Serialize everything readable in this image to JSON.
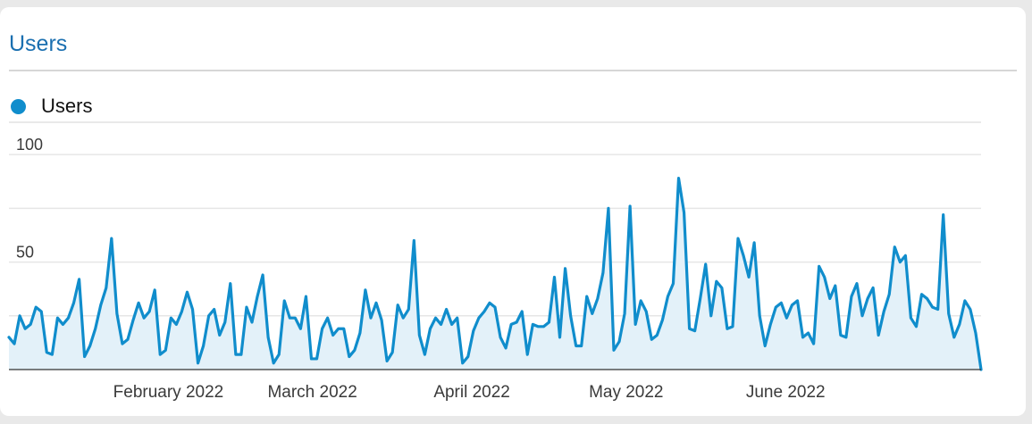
{
  "card": {
    "title": "Users"
  },
  "legend": {
    "label": "Users",
    "color": "#108dcc"
  },
  "chart_data": {
    "type": "area",
    "title": "Users",
    "xlabel": "",
    "ylabel": "",
    "ylim": [
      0,
      100
    ],
    "grid": true,
    "legend_position": "top-left",
    "y_ticks": [
      {
        "value": 100,
        "label": "100"
      },
      {
        "value": 50,
        "label": "50"
      }
    ],
    "x_ticks": [
      {
        "date": "2022-02-01",
        "label": "February 2022"
      },
      {
        "date": "2022-03-01",
        "label": "March 2022"
      },
      {
        "date": "2022-04-01",
        "label": "April 2022"
      },
      {
        "date": "2022-05-01",
        "label": "May 2022"
      },
      {
        "date": "2022-06-01",
        "label": "June 2022"
      }
    ],
    "x_start": "2022-01-01",
    "x_end": "2022-07-09",
    "series": [
      {
        "name": "Users",
        "color": "#108dcc",
        "fill": "#e3f1f9",
        "values": [
          15,
          12,
          25,
          19,
          21,
          29,
          27,
          8,
          7,
          24,
          21,
          24,
          31,
          42,
          6,
          11,
          19,
          30,
          38,
          61,
          26,
          12,
          14,
          23,
          31,
          24,
          27,
          37,
          7,
          9,
          24,
          21,
          27,
          36,
          28,
          3,
          11,
          25,
          28,
          16,
          22,
          40,
          7,
          7,
          29,
          22,
          34,
          44,
          15,
          3,
          7,
          32,
          24,
          24,
          19,
          34,
          5,
          5,
          19,
          24,
          16,
          19,
          19,
          6,
          9,
          17,
          37,
          24,
          31,
          23,
          4,
          8,
          30,
          24,
          28,
          60,
          16,
          7,
          19,
          24,
          21,
          28,
          21,
          24,
          3,
          6,
          18,
          24,
          27,
          31,
          29,
          15,
          10,
          21,
          22,
          27,
          7,
          21,
          20,
          20,
          22,
          43,
          15,
          47,
          25,
          11,
          11,
          34,
          26,
          33,
          45,
          75,
          9,
          13,
          26,
          76,
          21,
          32,
          27,
          14,
          16,
          23,
          34,
          40,
          89,
          73,
          19,
          18,
          33,
          49,
          25,
          41,
          38,
          19,
          20,
          61,
          53,
          43,
          59,
          25,
          11,
          21,
          29,
          31,
          24,
          30,
          32,
          15,
          17,
          12,
          48,
          43,
          33,
          39,
          16,
          15,
          34,
          40,
          25,
          33,
          38,
          16,
          27,
          35,
          57,
          50,
          53,
          24,
          20,
          35,
          33,
          29,
          28,
          72,
          26,
          15,
          21,
          32,
          28,
          17,
          0
        ]
      }
    ]
  }
}
